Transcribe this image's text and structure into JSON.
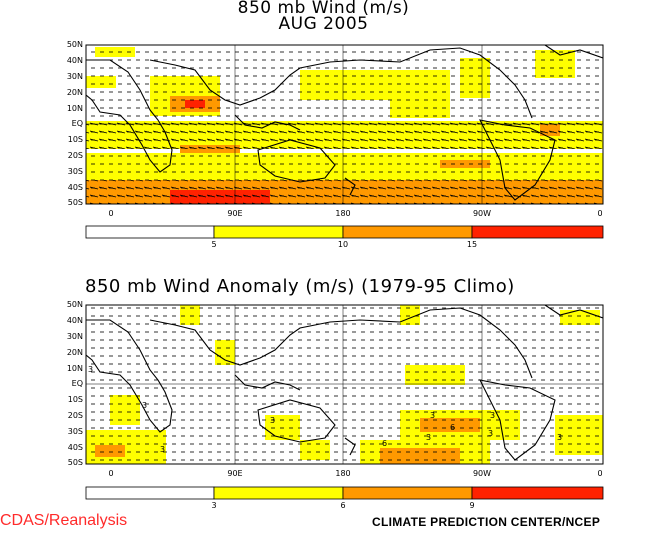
{
  "top_panel": {
    "title_line1": "850 mb Wind (m/s)",
    "title_line2": "AUG 2005",
    "lat_labels": [
      "50N",
      "40N",
      "30N",
      "20N",
      "10N",
      "EQ",
      "10S",
      "20S",
      "30S",
      "40S",
      "50S"
    ],
    "lon_labels": [
      "0",
      "90E",
      "180",
      "90W",
      "0"
    ],
    "colorbar": {
      "colors": [
        "#ffffff",
        "#ffff00",
        "#ff9900",
        "#ff2200"
      ],
      "labels": [
        "5",
        "10",
        "15"
      ]
    }
  },
  "bottom_panel": {
    "title": "850 mb Wind Anomaly (m/s) (1979-95 Climo)",
    "lat_labels": [
      "50N",
      "40N",
      "30N",
      "20N",
      "10N",
      "EQ",
      "10S",
      "20S",
      "30S",
      "40S",
      "50S"
    ],
    "lon_labels": [
      "0",
      "90E",
      "180",
      "90W",
      "0"
    ],
    "contour_labels": [
      "3",
      "3",
      "3",
      "3",
      "3",
      "6",
      "3",
      "3",
      "6",
      "3",
      "3"
    ],
    "colorbar": {
      "colors": [
        "#ffffff",
        "#ffff00",
        "#ff9900",
        "#ff2200"
      ],
      "labels": [
        "3",
        "6",
        "9"
      ]
    }
  },
  "footer": {
    "left": "CDAS/Reanalysis",
    "right": "CLIMATE PREDICTION CENTER/NCEP"
  }
}
